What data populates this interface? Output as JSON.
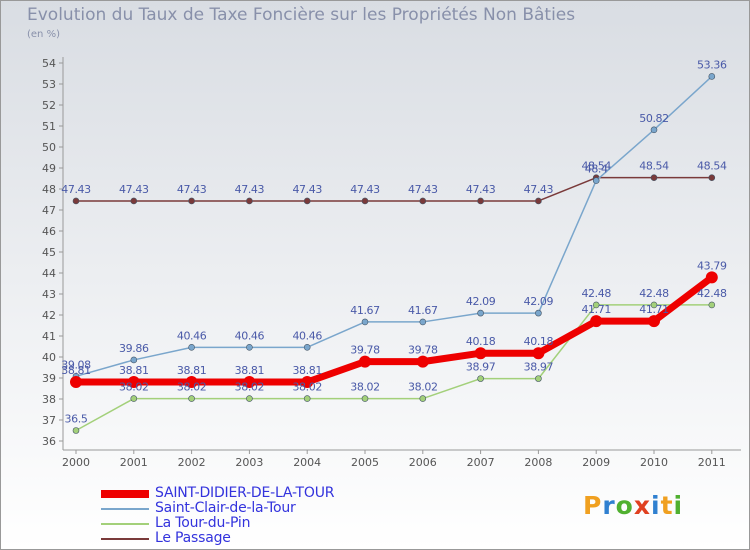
{
  "title": "Evolution du Taux de Taxe Foncière sur les Propriétés Non Bâties",
  "subtitle": "(en %)",
  "logo": {
    "chars": [
      "P",
      "r",
      "o",
      "x",
      "i",
      "t",
      "i"
    ],
    "colors": [
      "#f0a020",
      "#3080d0",
      "#50b030",
      "#e04020",
      "#3080d0",
      "#f0a020",
      "#50b030"
    ]
  },
  "chart_data": {
    "type": "line",
    "x": [
      "2000",
      "2001",
      "2002",
      "2003",
      "2004",
      "2005",
      "2006",
      "2007",
      "2008",
      "2009",
      "2010",
      "2011"
    ],
    "ylim": [
      36,
      54
    ],
    "yticks": [
      36,
      37,
      38,
      39,
      40,
      41,
      42,
      43,
      44,
      45,
      46,
      47,
      48,
      49,
      50,
      51,
      52,
      53,
      54
    ],
    "grid": false,
    "legend_position": "bottom-left",
    "series": [
      {
        "name": "SAINT-DIDIER-DE-LA-TOUR",
        "color": "#ee0000",
        "width": 7,
        "marker_r": 6,
        "values": [
          38.81,
          38.81,
          38.81,
          38.81,
          38.81,
          39.78,
          39.78,
          40.18,
          40.18,
          41.71,
          41.71,
          43.79
        ],
        "labels": [
          "38.81",
          "38.81",
          "38.81",
          "38.81",
          "38.81",
          "39.78",
          "39.78",
          "40.18",
          "40.18",
          "41.71",
          "41.71",
          "43.79"
        ]
      },
      {
        "name": "Saint-Clair-de-la-Tour",
        "color": "#7aa6cc",
        "width": 1.5,
        "marker_r": 3,
        "values": [
          39.08,
          39.86,
          40.46,
          40.46,
          40.46,
          41.67,
          41.67,
          42.09,
          42.09,
          48.4,
          50.82,
          53.36
        ],
        "labels": [
          "39.08",
          "39.86",
          "40.46",
          "40.46",
          "40.46",
          "41.67",
          "41.67",
          "42.09",
          "42.09",
          "48.4",
          "50.82",
          "53.36"
        ]
      },
      {
        "name": "La Tour-du-Pin",
        "color": "#a3d07a",
        "width": 1.5,
        "marker_r": 3,
        "values": [
          36.5,
          38.02,
          38.02,
          38.02,
          38.02,
          38.02,
          38.02,
          38.97,
          38.97,
          42.48,
          42.48,
          42.48
        ],
        "labels": [
          "36.5",
          "38.02",
          "38.02",
          "38.02",
          "38.02",
          "38.02",
          "38.02",
          "38.97",
          "38.97",
          "42.48",
          "42.48",
          "42.48"
        ]
      },
      {
        "name": "Le Passage",
        "color": "#7a3a3a",
        "width": 1.5,
        "marker_r": 3,
        "values": [
          47.43,
          47.43,
          47.43,
          47.43,
          47.43,
          47.43,
          47.43,
          47.43,
          47.43,
          48.54,
          48.54,
          48.54
        ],
        "labels": [
          "47.43",
          "47.43",
          "47.43",
          "47.43",
          "47.43",
          "47.43",
          "47.43",
          "47.43",
          "47.43",
          "48.54",
          "48.54",
          "48.54"
        ]
      }
    ]
  }
}
